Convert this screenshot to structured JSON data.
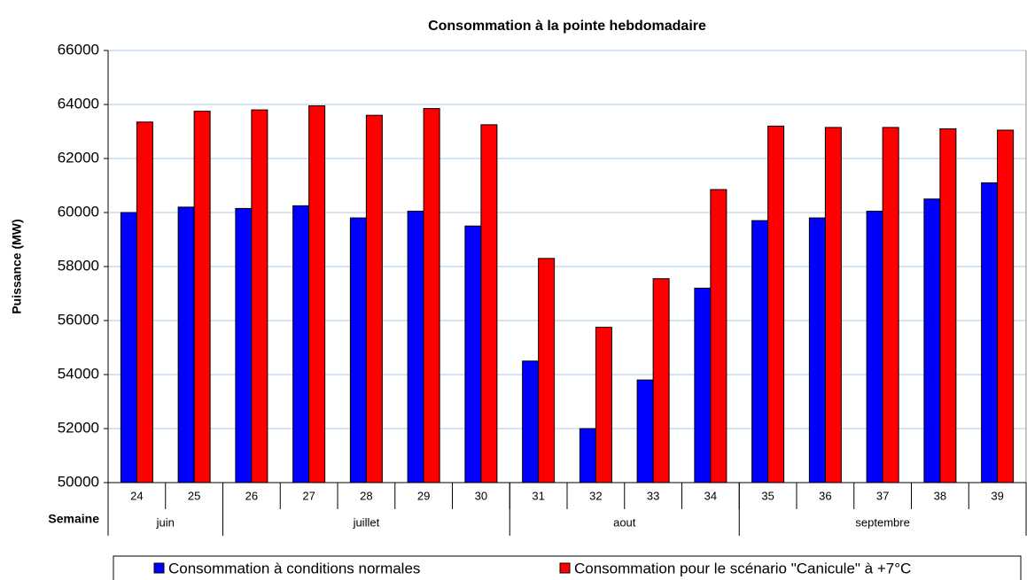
{
  "chart_data": {
    "type": "bar",
    "title": "Consommation à la pointe hebdomadaire",
    "y_label": "Puissance (MW)",
    "x_label": "Semaine",
    "categories": [
      "24",
      "25",
      "26",
      "27",
      "28",
      "29",
      "30",
      "31",
      "32",
      "33",
      "34",
      "35",
      "36",
      "37",
      "38",
      "39"
    ],
    "groups": [
      {
        "label": "juin",
        "span": 2
      },
      {
        "label": "juillet",
        "span": 5
      },
      {
        "label": "aout",
        "span": 4
      },
      {
        "label": "septembre",
        "span": 5
      }
    ],
    "series": [
      {
        "name": "Consommation à conditions normales",
        "color": "#0000ff",
        "values": [
          60000,
          60200,
          60150,
          60250,
          59800,
          60050,
          59500,
          54500,
          52000,
          53800,
          57200,
          59700,
          59800,
          60050,
          60500,
          61100
        ]
      },
      {
        "name": "Consommation pour le scénario \"Canicule\" à +7°C",
        "color": "#ff0000",
        "values": [
          63350,
          63750,
          63800,
          63950,
          63600,
          63850,
          63250,
          58300,
          55750,
          57550,
          60850,
          63200,
          63150,
          63150,
          63100,
          63050
        ]
      }
    ],
    "ylim": [
      50000,
      66000
    ],
    "yticks": [
      50000,
      52000,
      54000,
      56000,
      58000,
      60000,
      62000,
      64000,
      66000
    ],
    "grid": true
  }
}
